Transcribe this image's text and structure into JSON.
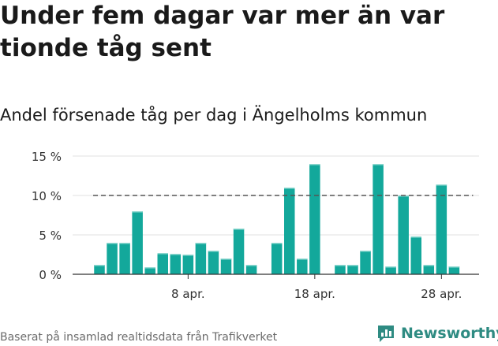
{
  "headline": "Under fem dagar var mer än var tionde tåg sent",
  "chart_data": {
    "type": "bar",
    "title": "Andel försenade tåg per dag i Ängelholms kommun",
    "y_ticks": [
      "15 %",
      "10 %",
      "5 %",
      "0 %"
    ],
    "y_tick_values": [
      15,
      10,
      5,
      0
    ],
    "ylim": [
      0,
      15
    ],
    "x_ticks": [
      "8 apr.",
      "18 apr.",
      "28 apr."
    ],
    "x_tick_days": [
      8,
      18,
      28
    ],
    "x_range_days": [
      1,
      30
    ],
    "grid": true,
    "reference_line": 10,
    "bar_color": "#13a89b",
    "days": [
      1,
      2,
      3,
      4,
      5,
      6,
      7,
      8,
      9,
      10,
      11,
      12,
      13,
      14,
      15,
      16,
      17,
      18,
      19,
      20,
      21,
      22,
      23,
      24,
      25,
      26,
      27,
      28,
      29,
      30
    ],
    "values": [
      1.2,
      4.0,
      4.0,
      8.0,
      0.9,
      2.7,
      2.6,
      2.5,
      4.0,
      3.0,
      2.0,
      5.8,
      1.2,
      null,
      4.0,
      11.0,
      2.0,
      14.0,
      null,
      1.2,
      1.2,
      3.0,
      14.0,
      1.0,
      10.0,
      4.8,
      1.2,
      11.4,
      1.0,
      null
    ]
  },
  "footer": {
    "source": "Baserat på insamlad realtidsdata från Trafikverket",
    "brand": "Newsworthy"
  }
}
